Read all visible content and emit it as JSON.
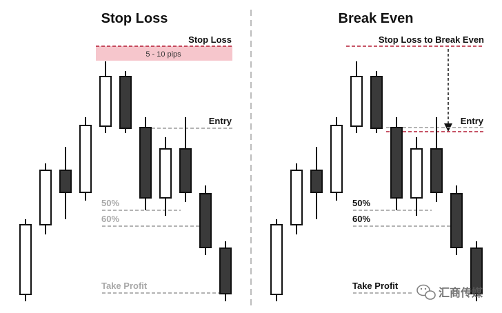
{
  "colors": {
    "bull_fill": "#ffffff",
    "bear_fill": "#3a3a3a",
    "candle_stroke": "#111111",
    "stop_line": "#b31b34",
    "stop_zone": "#f6c6cc",
    "level_line": "#9a9a9a",
    "divider": "#bcbcbc",
    "faded_text": "#a8a8a8"
  },
  "panels": [
    {
      "key": "left",
      "title": "Stop Loss",
      "labels": {
        "stop": "Stop Loss",
        "pips": "5 - 10 pips",
        "entry": "Entry",
        "fib50": "50%",
        "fib60": "60%",
        "take_profit": "Take Profit"
      }
    },
    {
      "key": "right",
      "title": "Break Even",
      "labels": {
        "stop": "Stop Loss to Break Even",
        "entry": "Entry",
        "fib50": "50%",
        "fib60": "60%",
        "take_profit": "Take Profit"
      }
    }
  ],
  "watermark": {
    "icon": "wechat-logo-icon",
    "text": "汇商传媒"
  }
}
